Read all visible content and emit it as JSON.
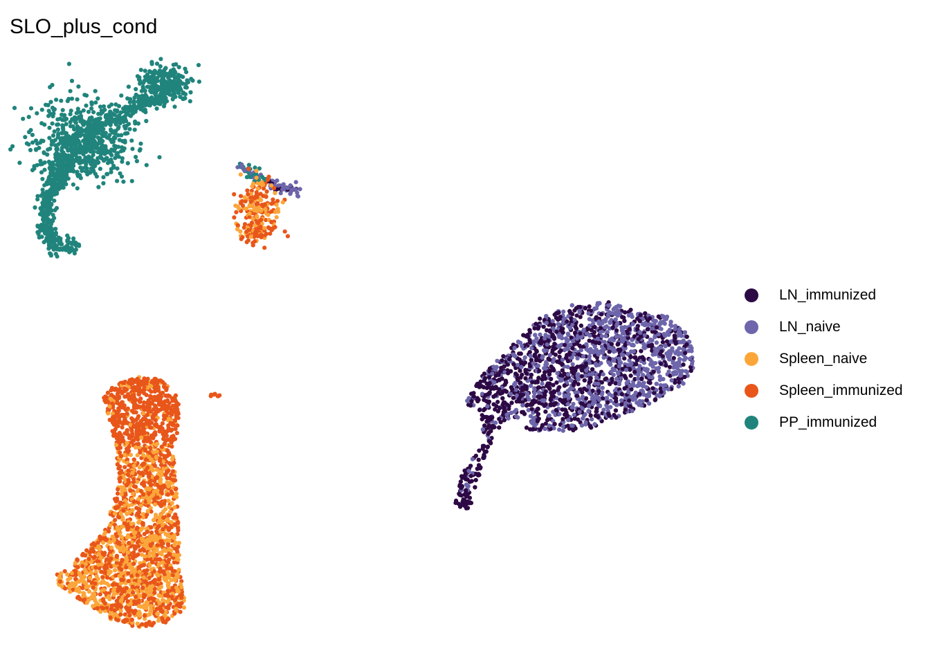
{
  "chart_data": {
    "type": "scatter",
    "title": "SLO_plus_cond",
    "xlabel": "",
    "ylabel": "",
    "axes_visible": false,
    "grid": false,
    "legend_position": "right",
    "series": [
      {
        "name": "LN_immunized",
        "color": "#2d0a45"
      },
      {
        "name": "LN_naive",
        "color": "#6e66ab"
      },
      {
        "name": "Spleen_naive",
        "color": "#fca63a"
      },
      {
        "name": "Spleen_immunized",
        "color": "#e8561a"
      },
      {
        "name": "PP_immunized",
        "color": "#20847c"
      }
    ]
  }
}
